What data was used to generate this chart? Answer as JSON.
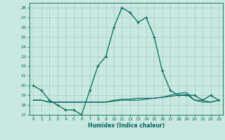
{
  "title": "",
  "xlabel": "Humidex (Indice chaleur)",
  "ylabel": "",
  "bg_color": "#c8e8e0",
  "grid_color": "#a8ccc8",
  "line_color": "#006858",
  "xlim": [
    -0.5,
    23.5
  ],
  "ylim": [
    17,
    28.5
  ],
  "yticks": [
    17,
    18,
    19,
    20,
    21,
    22,
    23,
    24,
    25,
    26,
    27,
    28
  ],
  "xticks": [
    0,
    1,
    2,
    3,
    4,
    5,
    6,
    7,
    8,
    9,
    10,
    11,
    12,
    13,
    14,
    15,
    16,
    17,
    18,
    19,
    20,
    21,
    22,
    23
  ],
  "line1_x": [
    0,
    1,
    2,
    3,
    4,
    5,
    6,
    7,
    8,
    9,
    10,
    11,
    12,
    13,
    14,
    15,
    16,
    17,
    18,
    19,
    20,
    21,
    22,
    23
  ],
  "line1_y": [
    20.0,
    19.5,
    18.5,
    18.0,
    17.5,
    17.5,
    17.0,
    19.5,
    22.0,
    23.0,
    26.0,
    28.0,
    27.5,
    26.5,
    27.0,
    25.0,
    21.5,
    19.5,
    19.0,
    19.0,
    19.0,
    18.5,
    19.0,
    18.5
  ],
  "line2_x": [
    0,
    1,
    2,
    3,
    4,
    5,
    6,
    7,
    8,
    9,
    10,
    11,
    12,
    13,
    14,
    15,
    16,
    17,
    18,
    19,
    20,
    21,
    22,
    23
  ],
  "line2_y": [
    18.5,
    18.5,
    18.3,
    18.3,
    18.3,
    18.3,
    18.3,
    18.3,
    18.3,
    18.3,
    18.4,
    18.5,
    18.5,
    18.5,
    18.6,
    18.7,
    18.8,
    19.0,
    19.2,
    19.3,
    18.5,
    18.5,
    18.3,
    18.5
  ],
  "line3_x": [
    0,
    1,
    2,
    3,
    4,
    5,
    6,
    7,
    8,
    9,
    10,
    11,
    12,
    13,
    14,
    15,
    16,
    17,
    18,
    19,
    20,
    21,
    22,
    23
  ],
  "line3_y": [
    18.5,
    18.5,
    18.3,
    18.3,
    18.3,
    18.3,
    18.3,
    18.3,
    18.3,
    18.3,
    18.5,
    18.6,
    18.6,
    18.7,
    18.7,
    18.7,
    18.8,
    18.9,
    19.0,
    19.1,
    18.5,
    18.3,
    18.3,
    18.5
  ],
  "xlabel_fontsize": 5.5,
  "tick_fontsize": 4.5,
  "lw1": 0.9,
  "lw2": 0.8
}
